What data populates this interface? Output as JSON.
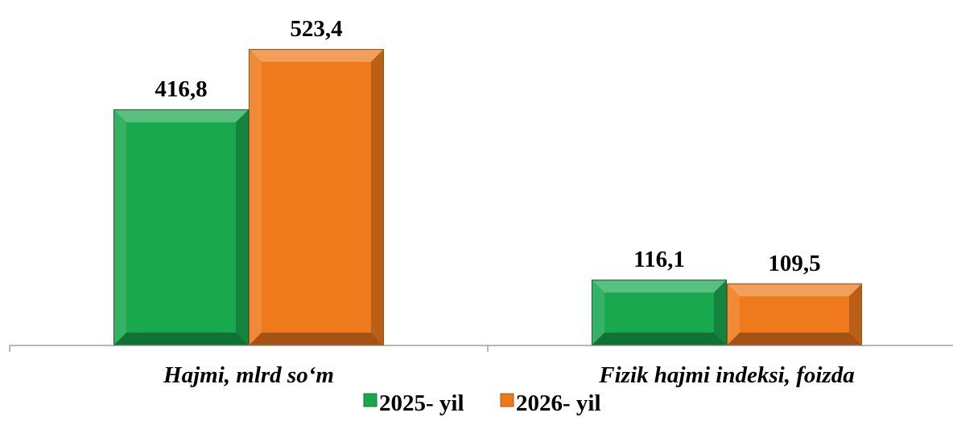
{
  "chart_data": {
    "type": "bar",
    "categories": [
      "Hajmi, mlrd so‘m",
      "Fizik hajmi indeksi, foizda"
    ],
    "series": [
      {
        "name": "2025- yil",
        "values": [
          416.8,
          116.1
        ],
        "labels": [
          "416,8",
          "116,1"
        ],
        "color": "#1aa84f"
      },
      {
        "name": "2026- yil",
        "values": [
          523.4,
          109.5
        ],
        "labels": [
          "523,4",
          "109,5"
        ],
        "color": "#ef7a1c"
      }
    ],
    "ylim": [
      0,
      610
    ],
    "grid": false,
    "legend_position": "bottom",
    "bar_style": "3d-bevel"
  }
}
